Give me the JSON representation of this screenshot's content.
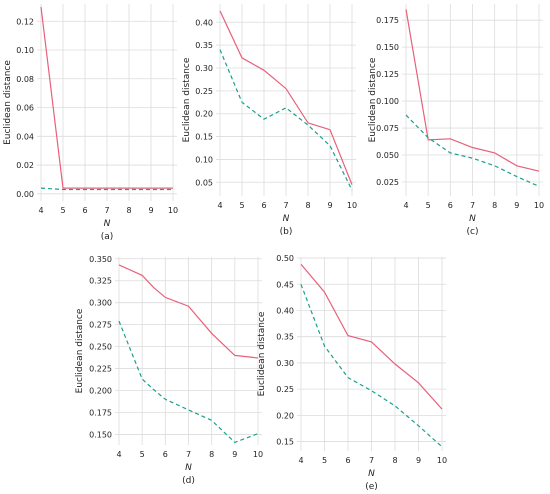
{
  "style": {
    "solid_color": "#e8607a",
    "dashed_color": "#1aa08c",
    "grid_color": "#dcdcdc"
  },
  "chart_data": [
    {
      "panel": "(a)",
      "type": "line",
      "xlabel": "N",
      "ylabel": "Euclidean distance",
      "x": [
        4,
        5,
        6,
        7,
        8,
        9,
        10
      ],
      "ylim": [
        -0.005,
        0.132
      ],
      "yticks": [
        0.0,
        0.02,
        0.04,
        0.06,
        0.08,
        0.1,
        0.12
      ],
      "ytick_labels": [
        "0.00",
        "0.02",
        "0.04",
        "0.06",
        "0.08",
        "0.10",
        "0.12"
      ],
      "grid": true,
      "series": [
        {
          "style": "solid",
          "values": [
            0.13,
            0.004,
            0.004,
            0.004,
            0.004,
            0.004,
            0.004
          ]
        },
        {
          "style": "dashed",
          "values": [
            0.004,
            0.003,
            0.003,
            0.003,
            0.003,
            0.003,
            0.003
          ]
        }
      ]
    },
    {
      "panel": "(b)",
      "type": "line",
      "xlabel": "N",
      "ylabel": "Euclidean distance",
      "x": [
        4,
        5,
        6,
        7,
        8,
        9,
        10
      ],
      "ylim": [
        0.02,
        0.44
      ],
      "yticks": [
        0.05,
        0.1,
        0.15,
        0.2,
        0.25,
        0.3,
        0.35,
        0.4
      ],
      "ytick_labels": [
        "0.05",
        "0.10",
        "0.15",
        "0.20",
        "0.25",
        "0.30",
        "0.35",
        "0.40"
      ],
      "grid": true,
      "series": [
        {
          "style": "solid",
          "values": [
            0.425,
            0.322,
            0.295,
            0.255,
            0.18,
            0.165,
            0.045
          ]
        },
        {
          "style": "dashed",
          "values": [
            0.34,
            0.225,
            0.188,
            0.213,
            0.175,
            0.13,
            0.033
          ]
        }
      ]
    },
    {
      "panel": "(c)",
      "type": "line",
      "xlabel": "N",
      "ylabel": "Euclidean distance",
      "x": [
        4,
        5,
        6,
        7,
        8,
        9,
        10
      ],
      "ylim": [
        0.012,
        0.19
      ],
      "yticks": [
        0.025,
        0.05,
        0.075,
        0.1,
        0.125,
        0.15,
        0.175
      ],
      "ytick_labels": [
        "0.025",
        "0.050",
        "0.075",
        "0.100",
        "0.125",
        "0.150",
        "0.175"
      ],
      "grid": true,
      "series": [
        {
          "style": "solid",
          "values": [
            0.185,
            0.064,
            0.065,
            0.057,
            0.052,
            0.04,
            0.035
          ]
        },
        {
          "style": "dashed",
          "values": [
            0.087,
            0.066,
            0.052,
            0.047,
            0.04,
            0.03,
            0.021
          ]
        }
      ]
    },
    {
      "panel": "(d)",
      "type": "line",
      "xlabel": "N",
      "ylabel": "Euclidean distance",
      "x": [
        4,
        5,
        5.5,
        6,
        7,
        8,
        9,
        10
      ],
      "ylim": [
        0.138,
        0.352
      ],
      "yticks": [
        0.15,
        0.175,
        0.2,
        0.225,
        0.25,
        0.275,
        0.3,
        0.325,
        0.35
      ],
      "ytick_labels": [
        "0.150",
        "0.175",
        "0.200",
        "0.225",
        "0.250",
        "0.275",
        "0.300",
        "0.325",
        "0.350"
      ],
      "xticks": [
        4,
        5,
        6,
        7,
        8,
        9,
        10
      ],
      "grid": true,
      "series": [
        {
          "style": "solid",
          "values": [
            0.343,
            0.331,
            0.317,
            0.306,
            0.296,
            0.265,
            0.24,
            0.237
          ]
        },
        {
          "style": "dashed",
          "values": [
            0.279,
            0.213,
            0.201,
            0.19,
            0.178,
            0.166,
            0.141,
            0.151
          ]
        }
      ]
    },
    {
      "panel": "(e)",
      "type": "line",
      "xlabel": "N",
      "ylabel": "Euclidean distance",
      "x": [
        4,
        5,
        6,
        7,
        8,
        9,
        10
      ],
      "ylim": [
        0.132,
        0.502
      ],
      "yticks": [
        0.15,
        0.2,
        0.25,
        0.3,
        0.35,
        0.4,
        0.45,
        0.5
      ],
      "ytick_labels": [
        "0.15",
        "0.20",
        "0.25",
        "0.30",
        "0.35",
        "0.40",
        "0.45",
        "0.50"
      ],
      "grid": true,
      "series": [
        {
          "style": "solid",
          "values": [
            0.488,
            0.435,
            0.352,
            0.34,
            0.298,
            0.262,
            0.212
          ]
        },
        {
          "style": "dashed",
          "values": [
            0.45,
            0.332,
            0.272,
            0.247,
            0.218,
            0.18,
            0.14
          ]
        }
      ]
    }
  ]
}
